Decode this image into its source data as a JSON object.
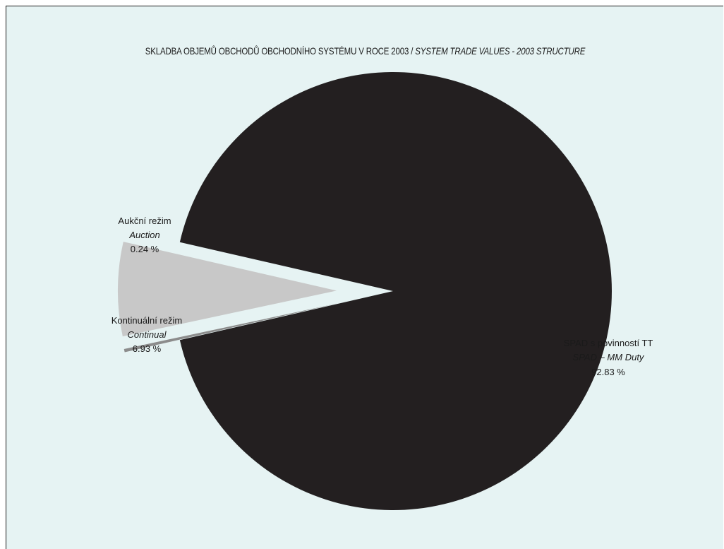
{
  "chart_data": {
    "type": "pie",
    "title": "SKLADBA OBJEMŮ OBCHODŮ OBCHODNÍHO SYSTÉMU V ROCE 2003 /",
    "title_en": "SYSTEM TRADE VALUES - 2003 STRUCTURE",
    "slices": [
      {
        "label": "SPAD s povinností TT",
        "label_en": "SPAD – MM Duty",
        "value": 92.83,
        "value_text": "92.83 %",
        "color": "#231f20",
        "exploded": false
      },
      {
        "label": "Aukční režim",
        "label_en": "Auction",
        "value": 0.24,
        "value_text": "0.24 %",
        "color": "#8c8c8c",
        "exploded": true
      },
      {
        "label": "Kontinuální režim",
        "label_en": "Continual",
        "value": 6.93,
        "value_text": "6.93 %",
        "color": "#c8c8c8",
        "exploded": true
      }
    ],
    "background": "#e6f3f3"
  }
}
